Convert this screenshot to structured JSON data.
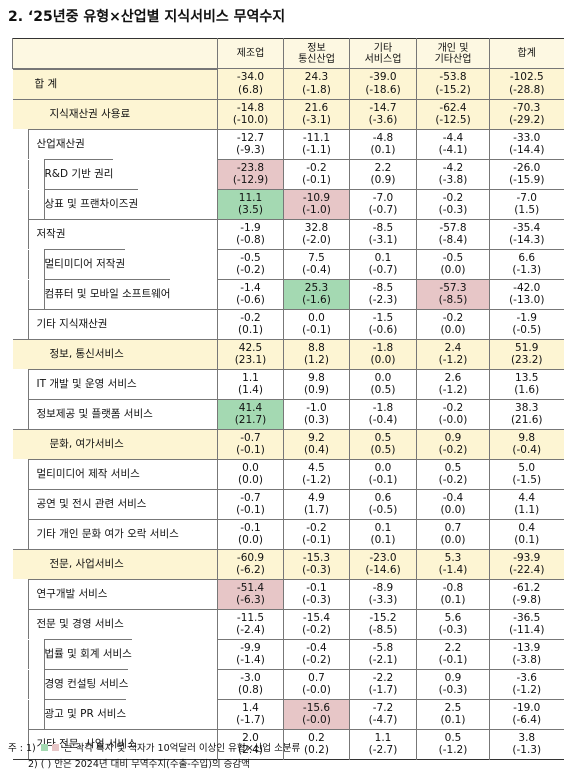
{
  "title": "2. ‘25년중 유형×산업별 지식서비스 무역수지",
  "colors": {
    "surplus": "#a4d9b2",
    "deficit": "#e7c6c7",
    "group": "#fdf5d3",
    "header": "#fdf8e2"
  },
  "table": {
    "columns": [
      "제조업",
      "정보\n통신산업",
      "기타\n서비스업",
      "개인 및\n기타산업",
      "합계"
    ],
    "rows": [
      {
        "label": "합    계",
        "level": 0,
        "cells": [
          [
            "-34.0",
            "(6.8)"
          ],
          [
            "24.3",
            "(-1.8)"
          ],
          [
            "-39.0",
            "(-18.6)"
          ],
          [
            "-53.8",
            "(-15.2)"
          ],
          [
            "-102.5",
            "(-28.8)"
          ]
        ]
      },
      {
        "label": "지식재산권 사용료",
        "level": 1,
        "cells": [
          [
            "-14.8",
            "(-10.0)"
          ],
          [
            "21.6",
            "(-3.1)"
          ],
          [
            "-14.7",
            "(-3.6)"
          ],
          [
            "-62.4",
            "(-12.5)"
          ],
          [
            "-70.3",
            "(-29.2)"
          ]
        ]
      },
      {
        "label": "산업재산권",
        "level": 2,
        "cells": [
          [
            "-12.7",
            "(-9.3)"
          ],
          [
            "-11.1",
            "(-1.1)"
          ],
          [
            "-4.8",
            "(0.1)"
          ],
          [
            "-4.4",
            "(-4.1)"
          ],
          [
            "-33.0",
            "(-14.4)"
          ]
        ]
      },
      {
        "label": "R&D 기반 권리",
        "level": 3,
        "deficit": [
          0
        ],
        "cells": [
          [
            "-23.8",
            "(-12.9)"
          ],
          [
            "-0.2",
            "(-0.1)"
          ],
          [
            "2.2",
            "(0.9)"
          ],
          [
            "-4.2",
            "(-3.8)"
          ],
          [
            "-26.0",
            "(-15.9)"
          ]
        ]
      },
      {
        "label": "상표 및 프랜차이즈권",
        "level": 3,
        "surplus": [
          0
        ],
        "deficit": [
          1
        ],
        "cells": [
          [
            "11.1",
            "(3.5)"
          ],
          [
            "-10.9",
            "(-1.0)"
          ],
          [
            "-7.0",
            "(-0.7)"
          ],
          [
            "-0.2",
            "(-0.3)"
          ],
          [
            "-7.0",
            "(1.5)"
          ]
        ]
      },
      {
        "label": "저작권",
        "level": 2,
        "cells": [
          [
            "-1.9",
            "(-0.8)"
          ],
          [
            "32.8",
            "(-2.0)"
          ],
          [
            "-8.5",
            "(-3.1)"
          ],
          [
            "-57.8",
            "(-8.4)"
          ],
          [
            "-35.4",
            "(-14.3)"
          ]
        ]
      },
      {
        "label": "멀티미디어 저작권",
        "level": 3,
        "cells": [
          [
            "-0.5",
            "(-0.2)"
          ],
          [
            "7.5",
            "(-0.4)"
          ],
          [
            "0.1",
            "(-0.7)"
          ],
          [
            "-0.5",
            "(0.0)"
          ],
          [
            "6.6",
            "(-1.3)"
          ]
        ]
      },
      {
        "label": "컴퓨터 및 모바일 소프트웨어",
        "level": 3,
        "surplus": [
          1
        ],
        "deficit": [
          3
        ],
        "cells": [
          [
            "-1.4",
            "(-0.6)"
          ],
          [
            "25.3",
            "(-1.6)"
          ],
          [
            "-8.5",
            "(-2.3)"
          ],
          [
            "-57.3",
            "(-8.5)"
          ],
          [
            "-42.0",
            "(-13.0)"
          ]
        ]
      },
      {
        "label": "기타 지식재산권",
        "level": 2,
        "cells": [
          [
            "-0.2",
            "(0.1)"
          ],
          [
            "0.0",
            "(-0.1)"
          ],
          [
            "-1.5",
            "(-0.6)"
          ],
          [
            "-0.2",
            "(0.0)"
          ],
          [
            "-1.9",
            "(-0.5)"
          ]
        ]
      },
      {
        "label": "정보, 통신서비스",
        "level": 1,
        "cells": [
          [
            "42.5",
            "(23.1)"
          ],
          [
            "8.8",
            "(1.2)"
          ],
          [
            "-1.8",
            "(0.0)"
          ],
          [
            "2.4",
            "(-1.2)"
          ],
          [
            "51.9",
            "(23.2)"
          ]
        ]
      },
      {
        "label": "IT 개발 및 운영 서비스",
        "level": 2,
        "cells": [
          [
            "1.1",
            "(1.4)"
          ],
          [
            "9.8",
            "(0.9)"
          ],
          [
            "0.0",
            "(0.5)"
          ],
          [
            "2.6",
            "(-1.2)"
          ],
          [
            "13.5",
            "(1.6)"
          ]
        ]
      },
      {
        "label": "정보제공 및 플랫폼 서비스",
        "level": 2,
        "surplus": [
          0
        ],
        "cells": [
          [
            "41.4",
            "(21.7)"
          ],
          [
            "-1.0",
            "(0.3)"
          ],
          [
            "-1.8",
            "(-0.4)"
          ],
          [
            "-0.2",
            "(-0.0)"
          ],
          [
            "38.3",
            "(21.6)"
          ]
        ]
      },
      {
        "label": "문화, 여가서비스",
        "level": 1,
        "cells": [
          [
            "-0.7",
            "(-0.1)"
          ],
          [
            "9.2",
            "(0.4)"
          ],
          [
            "0.5",
            "(0.5)"
          ],
          [
            "0.9",
            "(-0.2)"
          ],
          [
            "9.8",
            "(-0.4)"
          ]
        ]
      },
      {
        "label": "멀티미디어 제작 서비스",
        "level": 2,
        "cells": [
          [
            "0.0",
            "(0.0)"
          ],
          [
            "4.5",
            "(-1.2)"
          ],
          [
            "0.0",
            "(-0.1)"
          ],
          [
            "0.5",
            "(-0.2)"
          ],
          [
            "5.0",
            "(-1.5)"
          ]
        ]
      },
      {
        "label": "공연 및 전시 관련 서비스",
        "level": 2,
        "cells": [
          [
            "-0.7",
            "(-0.1)"
          ],
          [
            "4.9",
            "(1.7)"
          ],
          [
            "0.6",
            "(-0.5)"
          ],
          [
            "-0.4",
            "(0.0)"
          ],
          [
            "4.4",
            "(1.1)"
          ]
        ]
      },
      {
        "label": "기타 개인 문화 여가 오락 서비스",
        "level": 2,
        "cells": [
          [
            "-0.1",
            "(0.0)"
          ],
          [
            "-0.2",
            "(-0.1)"
          ],
          [
            "0.1",
            "(0.1)"
          ],
          [
            "0.7",
            "(0.0)"
          ],
          [
            "0.4",
            "(0.1)"
          ]
        ]
      },
      {
        "label": "전문, 사업서비스",
        "level": 1,
        "cells": [
          [
            "-60.9",
            "(-6.2)"
          ],
          [
            "-15.3",
            "(-0.3)"
          ],
          [
            "-23.0",
            "(-14.6)"
          ],
          [
            "5.3",
            "(-1.4)"
          ],
          [
            "-93.9",
            "(-22.4)"
          ]
        ]
      },
      {
        "label": "연구개발 서비스",
        "level": 2,
        "deficit": [
          0
        ],
        "cells": [
          [
            "-51.4",
            "(-6.3)"
          ],
          [
            "-0.1",
            "(-0.3)"
          ],
          [
            "-8.9",
            "(-3.3)"
          ],
          [
            "-0.8",
            "(0.1)"
          ],
          [
            "-61.2",
            "(-9.8)"
          ]
        ]
      },
      {
        "label": "전문 및 경영 서비스",
        "level": 2,
        "cells": [
          [
            "-11.5",
            "(-2.4)"
          ],
          [
            "-15.4",
            "(-0.2)"
          ],
          [
            "-15.2",
            "(-8.5)"
          ],
          [
            "5.6",
            "(-0.3)"
          ],
          [
            "-36.5",
            "(-11.4)"
          ]
        ]
      },
      {
        "label": "법률 및 회계 서비스",
        "level": 3,
        "cells": [
          [
            "-9.9",
            "(-1.4)"
          ],
          [
            "-0.4",
            "(-0.2)"
          ],
          [
            "-5.8",
            "(-2.1)"
          ],
          [
            "2.2",
            "(-0.1)"
          ],
          [
            "-13.9",
            "(-3.8)"
          ]
        ]
      },
      {
        "label": "경영 컨설팅 서비스",
        "level": 3,
        "cells": [
          [
            "-3.0",
            "(0.8)"
          ],
          [
            "0.7",
            "(-0.0)"
          ],
          [
            "-2.2",
            "(-1.7)"
          ],
          [
            "0.9",
            "(-0.3)"
          ],
          [
            "-3.6",
            "(-1.2)"
          ]
        ]
      },
      {
        "label": "광고 및 PR 서비스",
        "level": 3,
        "deficit": [
          1
        ],
        "cells": [
          [
            "1.4",
            "(-1.7)"
          ],
          [
            "-15.6",
            "(-0.0)"
          ],
          [
            "-7.2",
            "(-4.7)"
          ],
          [
            "2.5",
            "(0.1)"
          ],
          [
            "-19.0",
            "(-6.4)"
          ]
        ]
      },
      {
        "label": "기타 전문, 사업 서비스",
        "level": 2,
        "cells": [
          [
            "2.0",
            "(2.4)"
          ],
          [
            "0.2",
            "(0.2)"
          ],
          [
            "1.1",
            "(-2.7)"
          ],
          [
            "0.5",
            "(-1.2)"
          ],
          [
            "3.8",
            "(-1.3)"
          ]
        ]
      }
    ]
  },
  "notes": {
    "prefix": "주 :  1)",
    "note1": "는 각각 흑자 및 적자가 10억달러 이상인 유형×산업 소분류",
    "note2": "2) ( ) 안은 2024년 대비 무역수지(수출-수입)의 증감액"
  }
}
